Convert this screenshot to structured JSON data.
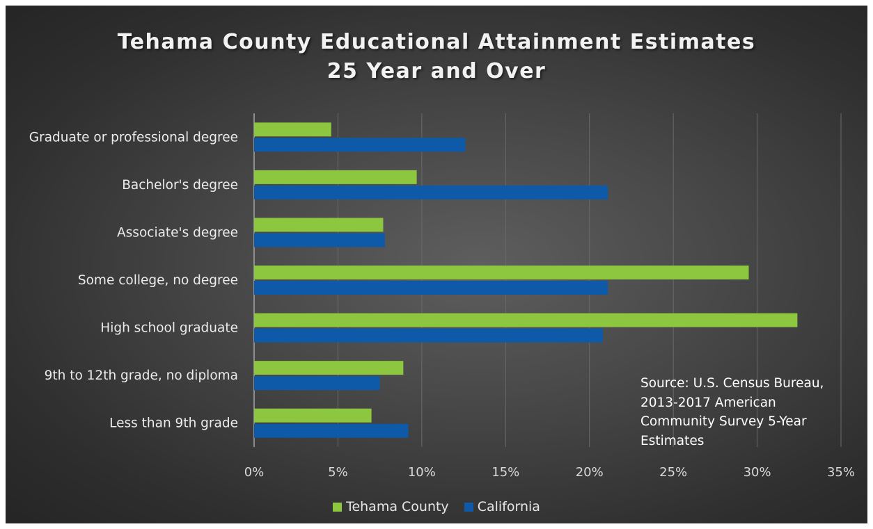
{
  "chart_data": {
    "type": "bar",
    "orientation": "horizontal",
    "title": [
      "Tehama County Educational Attainment Estimates",
      "25 Year and Over"
    ],
    "categories": [
      "Graduate or professional degree",
      "Bachelor's degree",
      "Associate's degree",
      "Some college, no degree",
      "High school graduate ",
      "9th to 12th grade, no diploma",
      "Less than 9th grade"
    ],
    "series": [
      {
        "name": "Tehama County",
        "color": "#8dc63f",
        "values": [
          4.6,
          9.7,
          7.7,
          29.5,
          32.4,
          8.9,
          7.0
        ]
      },
      {
        "name": "California",
        "color": "#0f5aa8",
        "values": [
          12.6,
          21.1,
          7.8,
          21.1,
          20.8,
          7.5,
          9.2
        ]
      }
    ],
    "xlim": [
      0,
      35
    ],
    "xticks": [
      0,
      5,
      10,
      15,
      20,
      25,
      30,
      35
    ],
    "xtick_labels": [
      "0%",
      "5%",
      "10%",
      "15%",
      "20%",
      "25%",
      "30%",
      "35%"
    ],
    "grid": true,
    "legend": "bottom",
    "annotation": [
      "Source: U.S. Census Bureau,",
      "2013-2017 American",
      "Community Survey 5-Year",
      "Estimates"
    ]
  }
}
